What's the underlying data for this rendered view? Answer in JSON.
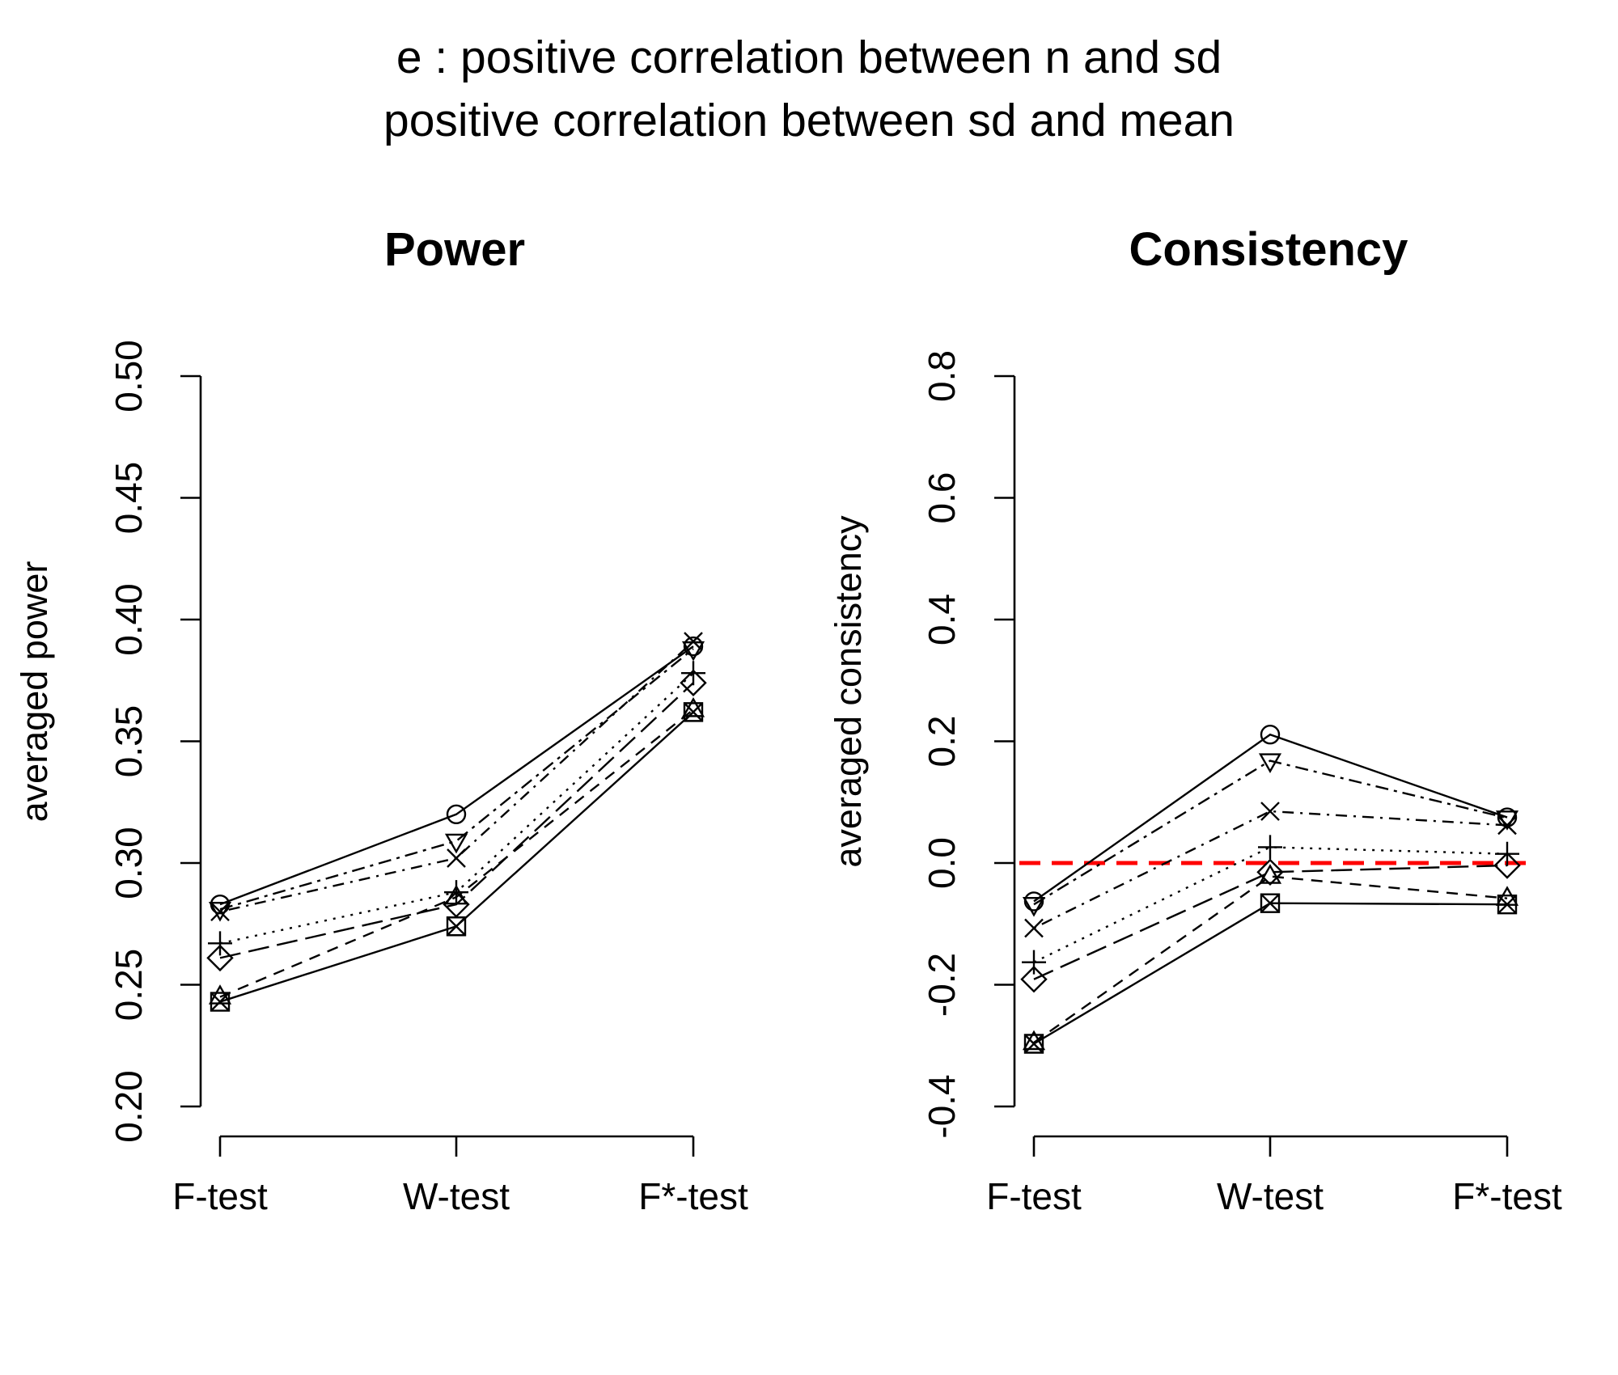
{
  "figure": {
    "title_line1": "e : positive correlation between n and sd",
    "title_line2": "positive correlation between sd and mean"
  },
  "chart_data": [
    {
      "type": "line",
      "id": "power",
      "title": "Power",
      "xlabel": "",
      "ylabel": "averaged power",
      "categories": [
        "F-test",
        "W-test",
        "F*-test"
      ],
      "ylim": [
        0.2,
        0.5
      ],
      "yticks": [
        0.2,
        0.25,
        0.3,
        0.35,
        0.4,
        0.45,
        0.5
      ],
      "ytick_labels": [
        "0.20",
        "0.25",
        "0.30",
        "0.35",
        "0.40",
        "0.45",
        "0.50"
      ],
      "series": [
        {
          "name": "circle",
          "marker": "circle",
          "linestyle": "solid",
          "values": [
            0.283,
            0.32,
            0.389
          ]
        },
        {
          "name": "triangle-down",
          "marker": "triangle-down",
          "linestyle": "dashdot",
          "values": [
            0.281,
            0.309,
            0.388
          ]
        },
        {
          "name": "x",
          "marker": "x",
          "linestyle": "dotdash",
          "values": [
            0.28,
            0.302,
            0.391
          ]
        },
        {
          "name": "plus",
          "marker": "plus",
          "linestyle": "dotted",
          "values": [
            0.267,
            0.288,
            0.378
          ]
        },
        {
          "name": "diamond",
          "marker": "diamond",
          "linestyle": "longdash",
          "values": [
            0.261,
            0.283,
            0.374
          ]
        },
        {
          "name": "triangle-up",
          "marker": "triangle-up",
          "linestyle": "dashed",
          "values": [
            0.245,
            0.286,
            0.363
          ]
        },
        {
          "name": "square-x",
          "marker": "square-x",
          "linestyle": "solid",
          "values": [
            0.243,
            0.274,
            0.362
          ]
        }
      ]
    },
    {
      "type": "line",
      "id": "consistency",
      "title": "Consistency",
      "xlabel": "",
      "ylabel": "averaged consistency",
      "categories": [
        "F-test",
        "W-test",
        "F*-test"
      ],
      "ylim": [
        -0.4,
        0.8
      ],
      "yticks": [
        -0.4,
        -0.2,
        0.0,
        0.2,
        0.4,
        0.6,
        0.8
      ],
      "ytick_labels": [
        "-0.4",
        "-0.2",
        "0.0",
        "0.2",
        "0.4",
        "0.6",
        "0.8"
      ],
      "reference_line": {
        "y": 0.0,
        "color": "#ff0000",
        "style": "dashed"
      },
      "series": [
        {
          "name": "circle",
          "marker": "circle",
          "linestyle": "solid",
          "values": [
            -0.063,
            0.211,
            0.075
          ]
        },
        {
          "name": "triangle-down",
          "marker": "triangle-down",
          "linestyle": "dashdot",
          "values": [
            -0.068,
            0.168,
            0.074
          ]
        },
        {
          "name": "x",
          "marker": "x",
          "linestyle": "dotdash",
          "values": [
            -0.107,
            0.085,
            0.062
          ]
        },
        {
          "name": "plus",
          "marker": "plus",
          "linestyle": "dotted",
          "values": [
            -0.163,
            0.026,
            0.015
          ]
        },
        {
          "name": "diamond",
          "marker": "diamond",
          "linestyle": "longdash",
          "values": [
            -0.191,
            -0.015,
            -0.004
          ]
        },
        {
          "name": "triangle-up",
          "marker": "triangle-up",
          "linestyle": "dashed",
          "values": [
            -0.295,
            -0.022,
            -0.058
          ]
        },
        {
          "name": "square-x",
          "marker": "square-x",
          "linestyle": "solid",
          "values": [
            -0.297,
            -0.066,
            -0.068
          ]
        }
      ]
    }
  ]
}
